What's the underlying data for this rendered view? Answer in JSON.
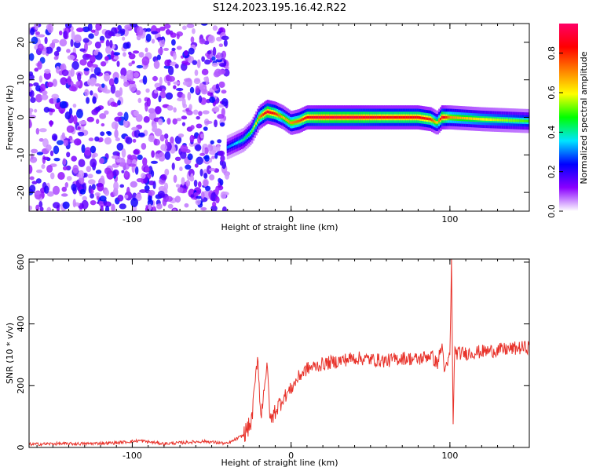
{
  "title": "S124.2023.195.16.42.R22",
  "chart_data": [
    {
      "type": "heatmap",
      "xlabel": "Height of straight line (km)",
      "ylabel": "Frequency (Hz)",
      "xlim": [
        -165,
        150
      ],
      "ylim": [
        -25,
        25
      ],
      "xticks": [
        -100,
        0,
        100
      ],
      "yticks": [
        -20,
        -10,
        0,
        10,
        20
      ],
      "colorbar": {
        "label": "Normalized spectral amplitude",
        "range": [
          0,
          0.95
        ],
        "ticks": [
          "0.0",
          "0.2",
          "0.4",
          "0.6",
          "0.8"
        ],
        "colors": [
          "#ffffff",
          "#8a00ff",
          "#0000ff",
          "#00e5ff",
          "#00ff00",
          "#ffff00",
          "#ff8000",
          "#ff0000",
          "#ff0066"
        ]
      },
      "noise_region": {
        "x_from": -165,
        "x_to": -40,
        "level": "low"
      },
      "ridge": {
        "x": [
          -40,
          -35,
          -30,
          -25,
          -20,
          -15,
          -10,
          -5,
          0,
          5,
          10,
          20,
          40,
          60,
          80,
          88,
          92,
          95,
          100,
          120,
          150
        ],
        "frequency": [
          -8,
          -7,
          -6,
          -4,
          0,
          1.5,
          1,
          0,
          -1.5,
          -1,
          0,
          0,
          0,
          0,
          0,
          -0.5,
          -1.5,
          0,
          0,
          -0.5,
          -1
        ],
        "amplitude": [
          0.3,
          0.35,
          0.4,
          0.5,
          0.7,
          0.9,
          0.8,
          0.65,
          0.7,
          0.75,
          0.85,
          0.9,
          0.9,
          0.85,
          0.85,
          0.8,
          0.6,
          0.9,
          0.7,
          0.6,
          0.5
        ]
      }
    },
    {
      "type": "line",
      "xlabel": "Height of straight line (km)",
      "ylabel": "SNR (10 * v/v)",
      "xlim": [
        -165,
        150
      ],
      "ylim": [
        0,
        610
      ],
      "xticks": [
        -100,
        0,
        100
      ],
      "yticks": [
        0,
        200,
        400,
        600
      ],
      "color": "#e8322a",
      "x": [
        -165,
        -150,
        -130,
        -110,
        -95,
        -90,
        -80,
        -70,
        -55,
        -45,
        -40,
        -30,
        -25,
        -21,
        -19,
        -17,
        -15,
        -13,
        -10,
        -5,
        0,
        5,
        10,
        20,
        30,
        40,
        50,
        60,
        70,
        80,
        88,
        92,
        95,
        97,
        100,
        101,
        102,
        103,
        105,
        110,
        120,
        130,
        140,
        150
      ],
      "y": [
        10,
        12,
        12,
        15,
        22,
        18,
        12,
        15,
        20,
        15,
        12,
        40,
        80,
        300,
        90,
        200,
        260,
        80,
        120,
        160,
        190,
        230,
        255,
        270,
        280,
        290,
        285,
        280,
        290,
        285,
        300,
        270,
        330,
        240,
        300,
        600,
        80,
        310,
        305,
        305,
        310,
        315,
        320,
        325
      ]
    }
  ]
}
